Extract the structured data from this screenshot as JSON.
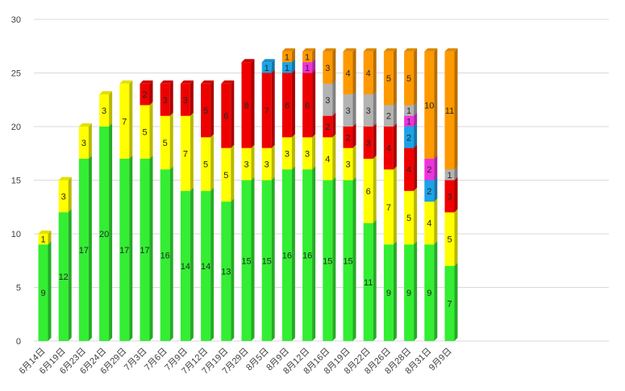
{
  "chart_data": {
    "type": "bar",
    "stacked": true,
    "style": "3d-column",
    "title": "",
    "xlabel": "",
    "ylabel": "",
    "ylim": [
      0,
      30
    ],
    "yticks": [
      0,
      5,
      10,
      15,
      20,
      25,
      30
    ],
    "grid": true,
    "legend": "none",
    "categories": [
      "6月14日",
      "6月19日",
      "6月23日",
      "6月24日",
      "6月29日",
      "7月3日",
      "7月6日",
      "7月9日",
      "7月12日",
      "7月19日",
      "7月29日",
      "8月5日",
      "8月9日",
      "8月12日",
      "8月16日",
      "8月19日",
      "8月22日",
      "8月26日",
      "8月28日",
      "8月31日",
      "9月9日"
    ],
    "series": [
      {
        "color": "#33ee33",
        "values": [
          9,
          12,
          17,
          20,
          17,
          17,
          16,
          14,
          14,
          13,
          15,
          15,
          16,
          16,
          15,
          15,
          11,
          9,
          9,
          9,
          7
        ]
      },
      {
        "color": "#ffff00",
        "values": [
          1,
          3,
          3,
          3,
          7,
          5,
          5,
          7,
          5,
          5,
          3,
          3,
          3,
          3,
          4,
          3,
          6,
          7,
          5,
          4,
          5
        ]
      },
      {
        "color": "#ee0000",
        "values": [
          0,
          0,
          0,
          0,
          0,
          2,
          3,
          3,
          5,
          6,
          8,
          7,
          6,
          6,
          2,
          2,
          3,
          4,
          4,
          0,
          3
        ]
      },
      {
        "color": "#1aa3e8",
        "values": [
          0,
          0,
          0,
          0,
          0,
          0,
          0,
          0,
          0,
          0,
          0,
          1,
          1,
          0,
          0,
          0,
          0,
          0,
          2,
          2,
          0
        ]
      },
      {
        "color": "#ee33dd",
        "values": [
          0,
          0,
          0,
          0,
          0,
          0,
          0,
          0,
          0,
          0,
          0,
          0,
          0,
          1,
          0,
          0,
          0,
          0,
          1,
          2,
          0
        ]
      },
      {
        "color": "#b3b3b3",
        "values": [
          0,
          0,
          0,
          0,
          0,
          0,
          0,
          0,
          0,
          0,
          0,
          0,
          0,
          0,
          3,
          3,
          3,
          2,
          1,
          0,
          1
        ]
      },
      {
        "color": "#ff9900",
        "values": [
          0,
          0,
          0,
          0,
          0,
          0,
          0,
          0,
          0,
          0,
          0,
          0,
          1,
          1,
          3,
          4,
          4,
          5,
          5,
          10,
          11
        ]
      }
    ]
  }
}
